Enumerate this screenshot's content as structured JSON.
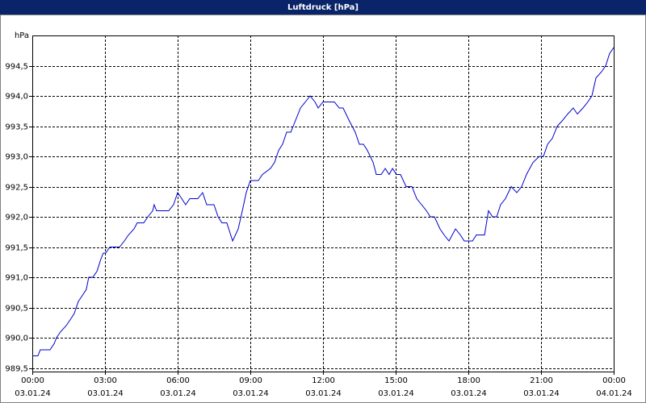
{
  "chart_data": {
    "type": "line",
    "title": "Luftdruck [hPa]",
    "y_unit": "hPa",
    "x": [
      0,
      0.23,
      0.33,
      0.73,
      0.9,
      1.0,
      1.17,
      1.4,
      1.57,
      1.73,
      1.9,
      2.07,
      2.23,
      2.33,
      2.5,
      2.67,
      2.83,
      2.93,
      3.03,
      3.2,
      3.6,
      3.8,
      3.97,
      4.2,
      4.33,
      4.6,
      4.77,
      4.97,
      5.03,
      5.13,
      5.63,
      5.83,
      6.0,
      6.17,
      6.33,
      6.5,
      6.83,
      7.03,
      7.2,
      7.5,
      7.67,
      7.83,
      8.03,
      8.27,
      8.5,
      8.67,
      8.83,
      9.0,
      9.33,
      9.5,
      9.83,
      10.0,
      10.17,
      10.33,
      10.5,
      10.67,
      10.87,
      11.07,
      11.27,
      11.47,
      11.67,
      11.8,
      12.0,
      12.47,
      12.67,
      12.83,
      13.07,
      13.33,
      13.5,
      13.67,
      13.83,
      14.07,
      14.2,
      14.4,
      14.57,
      14.73,
      14.87,
      15.03,
      15.2,
      15.43,
      15.67,
      15.87,
      16.07,
      16.27,
      16.43,
      16.6,
      16.83,
      17.0,
      17.2,
      17.47,
      17.67,
      17.83,
      18.17,
      18.33,
      18.67,
      18.83,
      19.0,
      19.17,
      19.33,
      19.53,
      19.77,
      20.0,
      20.2,
      20.4,
      20.67,
      20.93,
      21.1,
      21.27,
      21.47,
      21.67,
      21.9,
      22.1,
      22.33,
      22.5,
      22.73,
      22.93,
      23.1,
      23.27,
      23.5,
      23.67,
      23.83,
      24.0
    ],
    "series": [
      {
        "name": "Luftdruck",
        "color": "#0000cc",
        "values": [
          989.7,
          989.7,
          989.8,
          989.8,
          989.9,
          990.0,
          990.1,
          990.2,
          990.3,
          990.4,
          990.6,
          990.7,
          990.8,
          991.0,
          991.0,
          991.1,
          991.3,
          991.4,
          991.4,
          991.5,
          991.5,
          991.6,
          991.7,
          991.8,
          991.9,
          991.9,
          992.0,
          992.1,
          992.2,
          992.1,
          992.1,
          992.2,
          992.4,
          992.3,
          992.2,
          992.3,
          992.3,
          992.4,
          992.2,
          992.2,
          992.0,
          991.9,
          991.9,
          991.6,
          991.8,
          992.1,
          992.4,
          992.6,
          992.6,
          992.7,
          992.8,
          992.9,
          993.1,
          993.2,
          993.4,
          993.4,
          993.6,
          993.8,
          993.9,
          994.0,
          993.9,
          993.8,
          993.9,
          993.9,
          993.8,
          993.8,
          993.6,
          993.4,
          993.2,
          993.2,
          993.1,
          992.9,
          992.7,
          992.7,
          992.8,
          992.7,
          992.8,
          992.7,
          992.7,
          992.5,
          992.5,
          992.3,
          992.2,
          992.1,
          992.0,
          992.0,
          991.8,
          991.7,
          991.6,
          991.8,
          991.7,
          991.6,
          991.6,
          991.7,
          991.7,
          992.1,
          992.0,
          992.0,
          992.2,
          992.3,
          992.5,
          992.4,
          992.5,
          992.7,
          992.9,
          993.0,
          993.0,
          993.2,
          993.3,
          993.5,
          993.6,
          993.7,
          993.8,
          993.7,
          993.8,
          993.9,
          994.0,
          994.3,
          994.4,
          994.5,
          994.7,
          994.8
        ]
      }
    ],
    "xlim": [
      0,
      24
    ],
    "ylim": [
      989.44,
      995.0
    ],
    "xticks": [
      {
        "value": 0,
        "label": "00:00",
        "date": "03.01.24"
      },
      {
        "value": 3,
        "label": "03:00",
        "date": "03.01.24"
      },
      {
        "value": 6,
        "label": "06:00",
        "date": "03.01.24"
      },
      {
        "value": 9,
        "label": "09:00",
        "date": "03.01.24"
      },
      {
        "value": 12,
        "label": "12:00",
        "date": "03.01.24"
      },
      {
        "value": 15,
        "label": "15:00",
        "date": "03.01.24"
      },
      {
        "value": 18,
        "label": "18:00",
        "date": "03.01.24"
      },
      {
        "value": 21,
        "label": "21:00",
        "date": "03.01.24"
      },
      {
        "value": 24,
        "label": "00:00",
        "date": "04.01.24"
      }
    ],
    "yticks": [
      {
        "value": 989.5,
        "label": "989,5"
      },
      {
        "value": 990,
        "label": "990,0"
      },
      {
        "value": 990.5,
        "label": "990,5"
      },
      {
        "value": 991,
        "label": "991,0"
      },
      {
        "value": 991.5,
        "label": "991,5"
      },
      {
        "value": 992,
        "label": "992,0"
      },
      {
        "value": 992.5,
        "label": "992,5"
      },
      {
        "value": 993,
        "label": "993,0"
      },
      {
        "value": 993.5,
        "label": "993,5"
      },
      {
        "value": 994,
        "label": "994,0"
      },
      {
        "value": 994.5,
        "label": "994,5"
      }
    ],
    "grid": true
  }
}
